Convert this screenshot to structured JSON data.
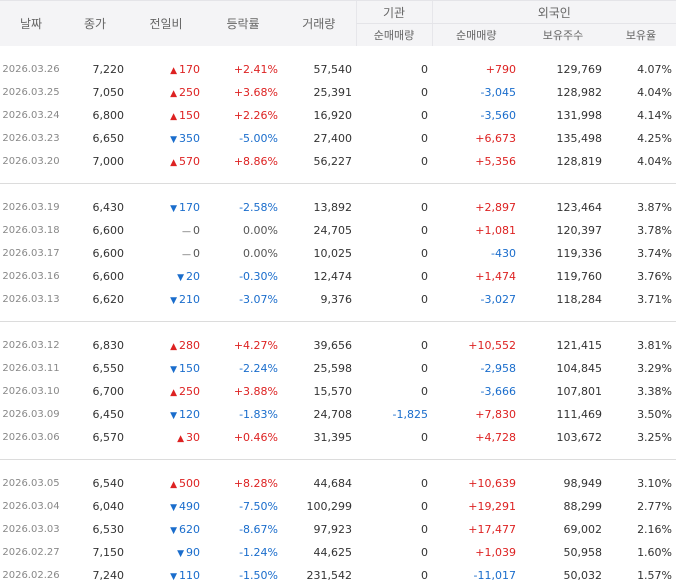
{
  "headers": {
    "date": "날짜",
    "close": "종가",
    "change": "전일비",
    "rate": "등락률",
    "volume": "거래량",
    "institution": "기관",
    "foreign": "외국인",
    "inst_net": "순매매량",
    "foreign_net": "순매매량",
    "holdings": "보유주수",
    "hold_rate": "보유율"
  },
  "colors": {
    "up": "#dd2222",
    "down": "#1a6dcc",
    "flat": "#555555",
    "header_bg": "#f4f4f6"
  },
  "icons": {
    "up": "triangle-up-icon",
    "down": "triangle-down-icon",
    "flat": "dash-icon"
  },
  "groups": [
    [
      {
        "date": "2026.03.26",
        "close": "7,220",
        "dir": "up",
        "change": "170",
        "rate": "+2.41%",
        "volume": "57,540",
        "inst": "0",
        "fnet": "+790",
        "fdir": "up",
        "hold": "129,769",
        "hrate": "4.07%"
      },
      {
        "date": "2026.03.25",
        "close": "7,050",
        "dir": "up",
        "change": "250",
        "rate": "+3.68%",
        "volume": "25,391",
        "inst": "0",
        "fnet": "-3,045",
        "fdir": "down",
        "hold": "128,982",
        "hrate": "4.04%"
      },
      {
        "date": "2026.03.24",
        "close": "6,800",
        "dir": "up",
        "change": "150",
        "rate": "+2.26%",
        "volume": "16,920",
        "inst": "0",
        "fnet": "-3,560",
        "fdir": "down",
        "hold": "131,998",
        "hrate": "4.14%"
      },
      {
        "date": "2026.03.23",
        "close": "6,650",
        "dir": "down",
        "change": "350",
        "rate": "-5.00%",
        "volume": "27,400",
        "inst": "0",
        "fnet": "+6,673",
        "fdir": "up",
        "hold": "135,498",
        "hrate": "4.25%"
      },
      {
        "date": "2026.03.20",
        "close": "7,000",
        "dir": "up",
        "change": "570",
        "rate": "+8.86%",
        "volume": "56,227",
        "inst": "0",
        "fnet": "+5,356",
        "fdir": "up",
        "hold": "128,819",
        "hrate": "4.04%"
      }
    ],
    [
      {
        "date": "2026.03.19",
        "close": "6,430",
        "dir": "down",
        "change": "170",
        "rate": "-2.58%",
        "volume": "13,892",
        "inst": "0",
        "fnet": "+2,897",
        "fdir": "up",
        "hold": "123,464",
        "hrate": "3.87%"
      },
      {
        "date": "2026.03.18",
        "close": "6,600",
        "dir": "flat",
        "change": "0",
        "rate": "0.00%",
        "volume": "24,705",
        "inst": "0",
        "fnet": "+1,081",
        "fdir": "up",
        "hold": "120,397",
        "hrate": "3.78%"
      },
      {
        "date": "2026.03.17",
        "close": "6,600",
        "dir": "flat",
        "change": "0",
        "rate": "0.00%",
        "volume": "10,025",
        "inst": "0",
        "fnet": "-430",
        "fdir": "down",
        "hold": "119,336",
        "hrate": "3.74%"
      },
      {
        "date": "2026.03.16",
        "close": "6,600",
        "dir": "down",
        "change": "20",
        "rate": "-0.30%",
        "volume": "12,474",
        "inst": "0",
        "fnet": "+1,474",
        "fdir": "up",
        "hold": "119,760",
        "hrate": "3.76%"
      },
      {
        "date": "2026.03.13",
        "close": "6,620",
        "dir": "down",
        "change": "210",
        "rate": "-3.07%",
        "volume": "9,376",
        "inst": "0",
        "fnet": "-3,027",
        "fdir": "down",
        "hold": "118,284",
        "hrate": "3.71%"
      }
    ],
    [
      {
        "date": "2026.03.12",
        "close": "6,830",
        "dir": "up",
        "change": "280",
        "rate": "+4.27%",
        "volume": "39,656",
        "inst": "0",
        "fnet": "+10,552",
        "fdir": "up",
        "hold": "121,415",
        "hrate": "3.81%"
      },
      {
        "date": "2026.03.11",
        "close": "6,550",
        "dir": "down",
        "change": "150",
        "rate": "-2.24%",
        "volume": "25,598",
        "inst": "0",
        "fnet": "-2,958",
        "fdir": "down",
        "hold": "104,845",
        "hrate": "3.29%"
      },
      {
        "date": "2026.03.10",
        "close": "6,700",
        "dir": "up",
        "change": "250",
        "rate": "+3.88%",
        "volume": "15,570",
        "inst": "0",
        "fnet": "-3,666",
        "fdir": "down",
        "hold": "107,801",
        "hrate": "3.38%"
      },
      {
        "date": "2026.03.09",
        "close": "6,450",
        "dir": "down",
        "change": "120",
        "rate": "-1.83%",
        "volume": "24,708",
        "inst": "-1,825",
        "idir": "down",
        "fnet": "+7,830",
        "fdir": "up",
        "hold": "111,469",
        "hrate": "3.50%"
      },
      {
        "date": "2026.03.06",
        "close": "6,570",
        "dir": "up",
        "change": "30",
        "rate": "+0.46%",
        "volume": "31,395",
        "inst": "0",
        "fnet": "+4,728",
        "fdir": "up",
        "hold": "103,672",
        "hrate": "3.25%"
      }
    ],
    [
      {
        "date": "2026.03.05",
        "close": "6,540",
        "dir": "up",
        "change": "500",
        "rate": "+8.28%",
        "volume": "44,684",
        "inst": "0",
        "fnet": "+10,639",
        "fdir": "up",
        "hold": "98,949",
        "hrate": "3.10%"
      },
      {
        "date": "2026.03.04",
        "close": "6,040",
        "dir": "down",
        "change": "490",
        "rate": "-7.50%",
        "volume": "100,299",
        "inst": "0",
        "fnet": "+19,291",
        "fdir": "up",
        "hold": "88,299",
        "hrate": "2.77%"
      },
      {
        "date": "2026.03.03",
        "close": "6,530",
        "dir": "down",
        "change": "620",
        "rate": "-8.67%",
        "volume": "97,923",
        "inst": "0",
        "fnet": "+17,477",
        "fdir": "up",
        "hold": "69,002",
        "hrate": "2.16%"
      },
      {
        "date": "2026.02.27",
        "close": "7,150",
        "dir": "down",
        "change": "90",
        "rate": "-1.24%",
        "volume": "44,625",
        "inst": "0",
        "fnet": "+1,039",
        "fdir": "up",
        "hold": "50,958",
        "hrate": "1.60%"
      },
      {
        "date": "2026.02.26",
        "close": "7,240",
        "dir": "down",
        "change": "110",
        "rate": "-1.50%",
        "volume": "231,542",
        "inst": "0",
        "fnet": "-11,017",
        "fdir": "down",
        "hold": "50,032",
        "hrate": "1.57%"
      }
    ]
  ]
}
